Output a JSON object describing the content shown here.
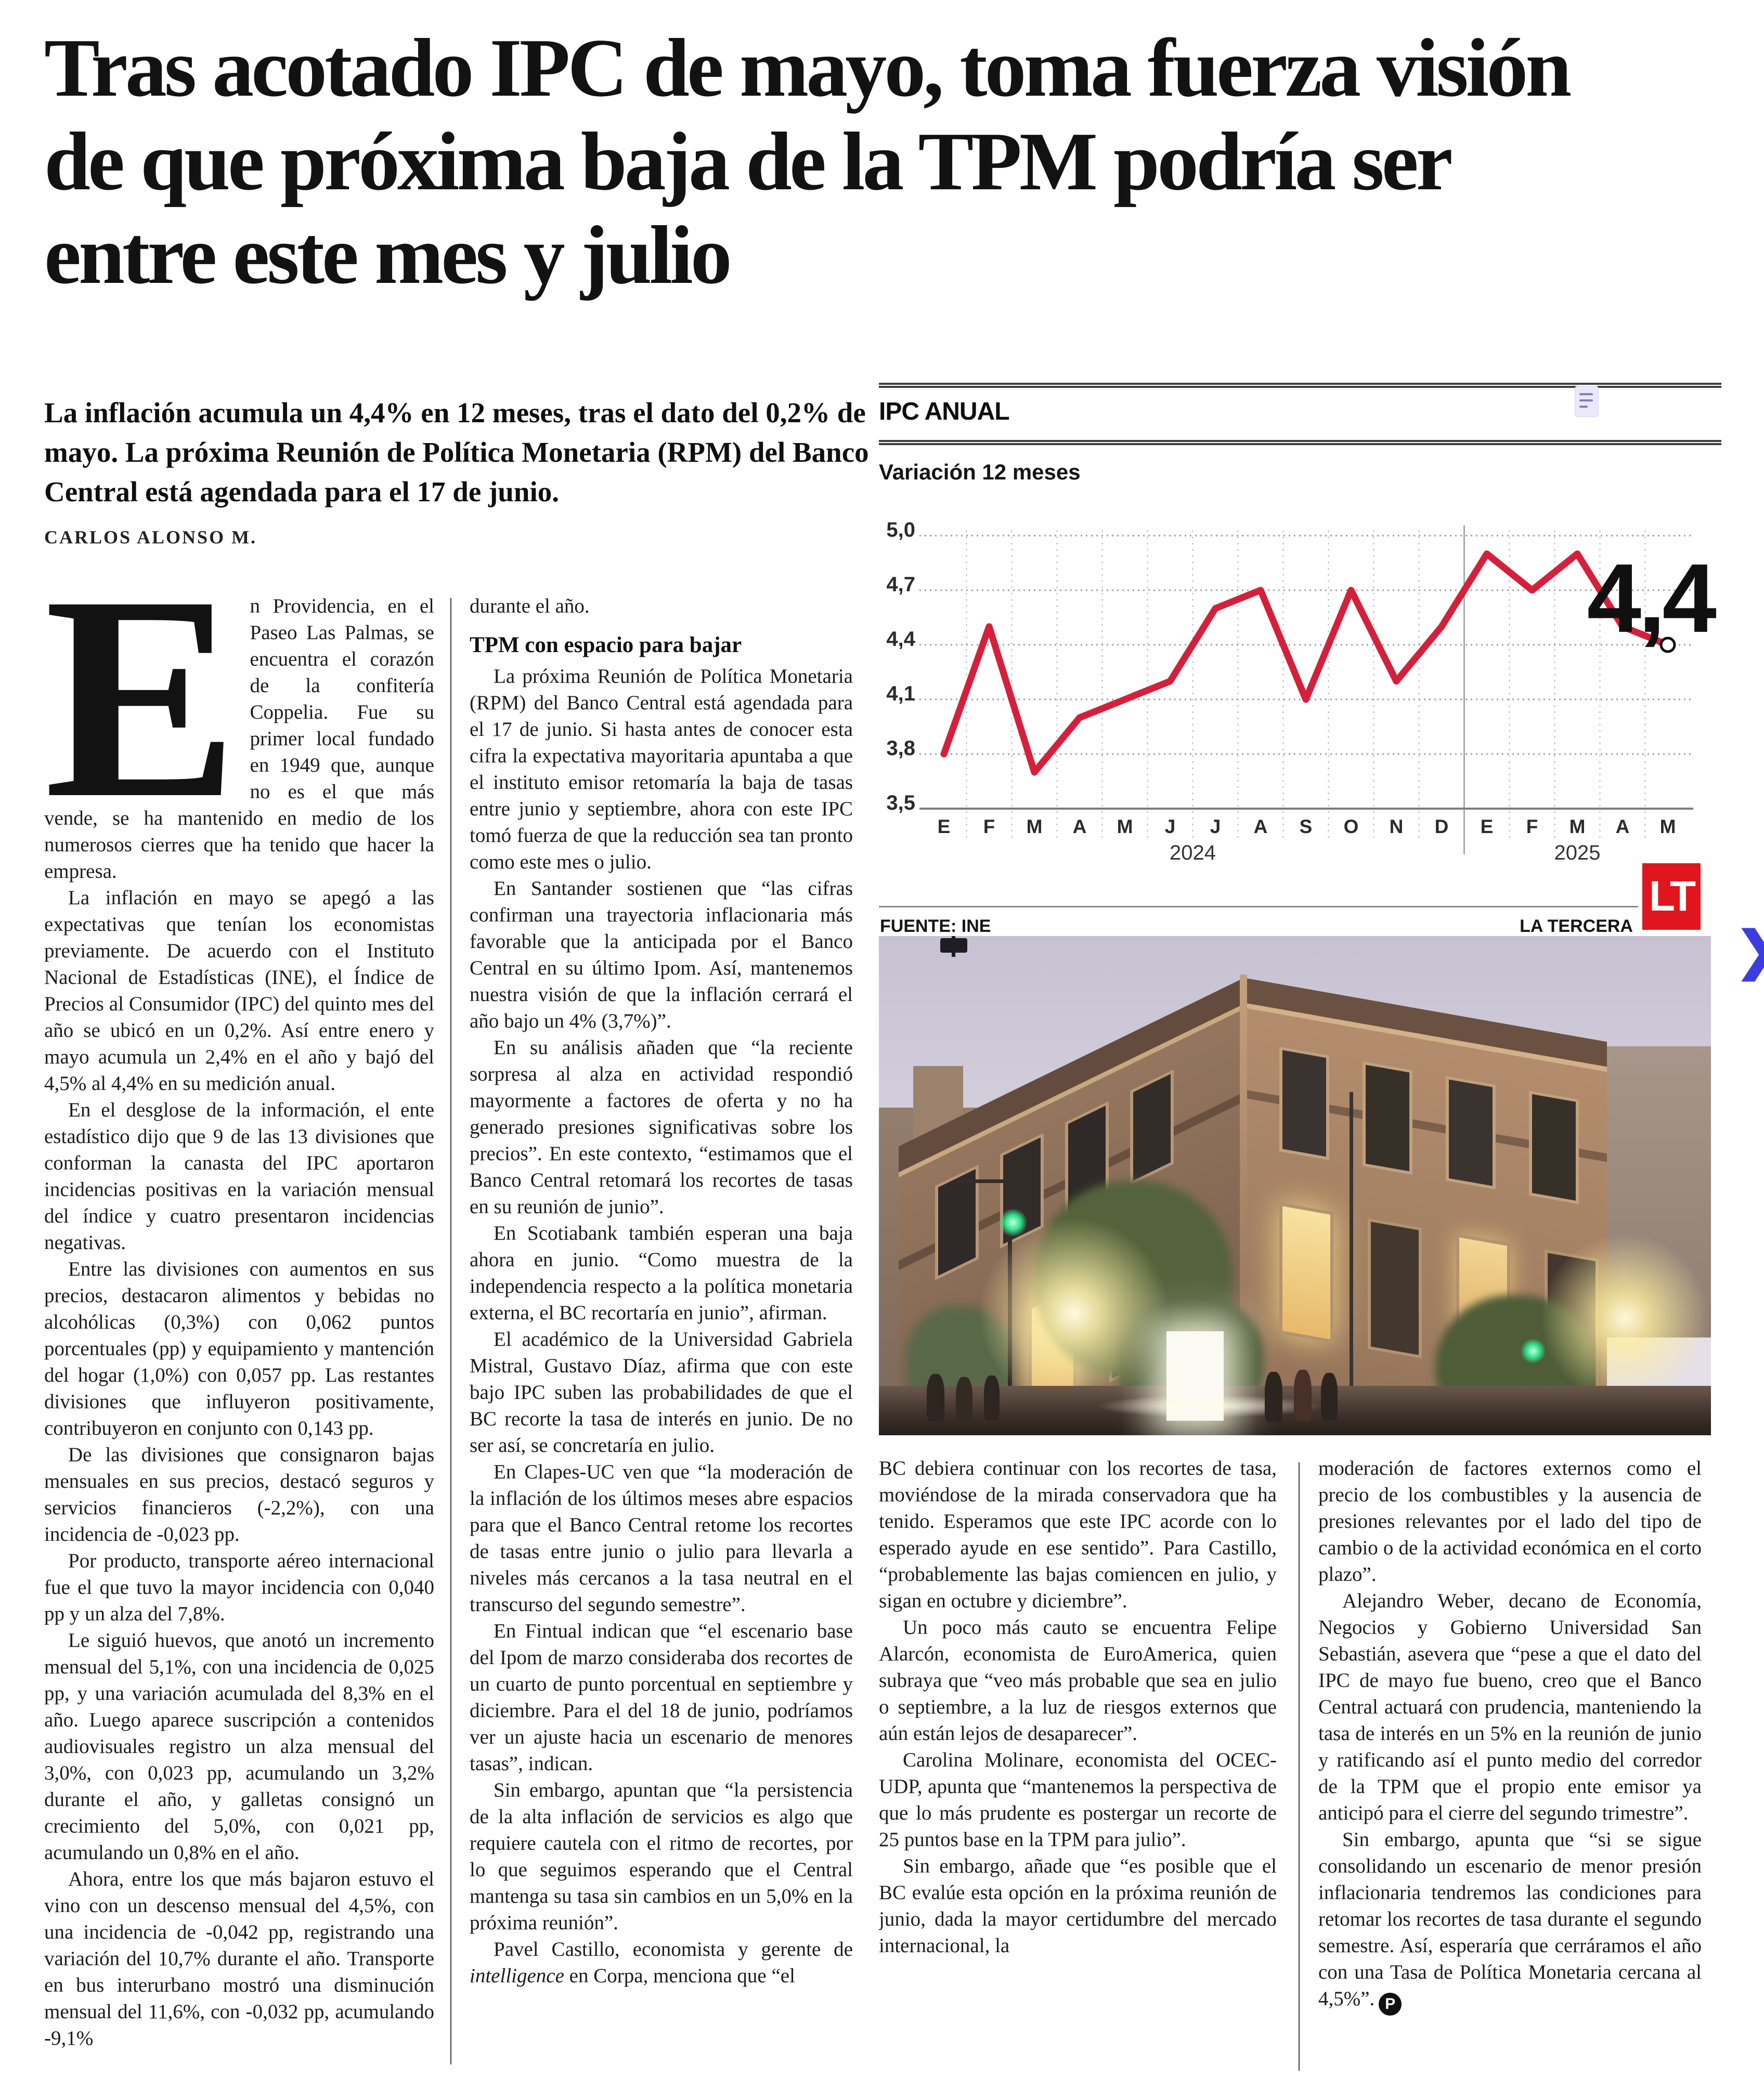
{
  "article": {
    "headline": "Tras acotado IPC de mayo, toma fuerza visión de que próxima baja de la TPM podría ser entre este mes y julio",
    "lede": "La inflación acumula un 4,4% en 12 meses, tras el dato del 0,2% de mayo. La próxima Reunión de Política Monetaria (RPM) del Banco Central está agendada para el 17 de junio.",
    "byline": "CARLOS ALONSO M.",
    "drop_cap": "E",
    "col1_paras": [
      "n Providencia, en el Paseo Las Palmas, se encuentra el corazón de la confitería Coppelia. Fue su primer local fundado en 1949 que, aunque no es el que más vende, se ha mantenido en medio de los numerosos cierres que ha tenido que hacer la empresa.",
      "La inflación en mayo se apegó a las expectativas que tenían los economistas previamente. De acuerdo con el Instituto Nacional de Estadísticas (INE), el Índice de Precios al Consumidor (IPC) del quinto mes del año se ubicó en un 0,2%. Así entre enero y mayo acumula un 2,4% en el año y bajó del 4,5% al 4,4% en su medición anual.",
      "En el desglose de la información, el ente estadístico dijo que 9 de las 13 divisiones que conforman la canasta del IPC aportaron incidencias positivas en la variación mensual del índice y cuatro presentaron incidencias negativas.",
      "Entre las divisiones con aumentos en sus precios, destacaron alimentos y bebidas no alcohólicas (0,3%) con 0,062 puntos porcentuales (pp) y equipamiento y mantención del hogar (1,0%) con 0,057 pp. Las restantes divisiones que influyeron positivamente, contribuyeron en conjunto con 0,143 pp.",
      "De las divisiones que consignaron bajas mensuales en sus precios, destacó seguros y servicios financieros (-2,2%), con una incidencia de -0,023 pp.",
      "Por producto, transporte aéreo internacional fue el que tuvo la mayor incidencia con 0,040 pp y un alza del 7,8%.",
      "Le siguió huevos, que anotó un incremento mensual del 5,1%, con una incidencia de 0,025 pp, y una variación acumulada del 8,3% en el año. Luego aparece suscripción a contenidos audiovisuales registro un alza mensual del 3,0%, con 0,023 pp, acumulando un 3,2% durante el año, y galletas consignó un crecimiento del 5,0%, con 0,021 pp, acumulando un 0,8% en el año.",
      "Ahora, entre los que más bajaron estuvo el vino con un descenso mensual del 4,5%, con una incidencia de -0,042 pp, registrando una variación del 10,7% durante el año. Transporte en bus interurbano mostró una disminución mensual del 11,6%, con -0,032 pp, acumulando -9,1%"
    ],
    "col2_continuation": "durante el año.",
    "subhead": "TPM con espacio para bajar",
    "col2_paras": [
      "La próxima Reunión de Política Monetaria (RPM) del Banco Central está agendada para el 17 de junio. Si hasta antes de conocer esta cifra la expectativa mayoritaria apuntaba a que el instituto emisor retomaría la baja de tasas entre junio y septiembre, ahora con este IPC tomó fuerza de que la reducción sea tan pronto como este mes o julio.",
      "En Santander sostienen que “las cifras confirman una trayectoria inflacionaria más favorable que la anticipada por el Banco Central en su último Ipom. Así, mantenemos nuestra visión de que la inflación cerrará el año bajo un 4% (3,7%)”.",
      "En su análisis añaden que “la reciente sorpresa al alza en actividad respondió mayormente a factores de oferta y no ha generado presiones significativas sobre los precios”. En este contexto, “estimamos que el Banco Central retomará los recortes de tasas en su reunión de junio”.",
      "En Scotiabank también esperan una baja ahora en junio. “Como muestra de la independencia respecto a la política monetaria externa, el BC recortaría en junio”, afirman.",
      "El académico de la Universidad Gabriela Mistral, Gustavo Díaz, afirma que con este bajo IPC suben las probabilidades de que el BC recorte la tasa de interés en junio. De no ser así, se concretaría en julio.",
      "En Clapes-UC ven que “la moderación de la inflación de los últimos meses abre espacios para que el Banco Central retome los recortes de tasas entre junio o julio para llevarla a niveles más cercanos a la tasa neutral en el transcurso del segundo semestre”.",
      "En Fintual indican que “el escenario base del Ipom de marzo consideraba dos recortes de un cuarto de punto porcentual en septiembre y diciembre. Para el del 18 de junio, podríamos ver un ajuste hacia un escenario de menores tasas”, indican.",
      "Sin embargo, apuntan que “la persistencia de la alta inflación de servicios es algo que requiere cautela con el ritmo de recortes, por lo que seguimos esperando que el Central mantenga su tasa sin cambios en un 5,0% en la próxima reunión”."
    ],
    "col2_last": {
      "before": "Pavel Castillo, economista y gerente de ",
      "italic": "intelligence",
      "after": " en Corpa, menciona que “el"
    },
    "col3_paras": [
      "BC debiera continuar con los recortes de tasa, moviéndose de la mirada conservadora que ha tenido. Esperamos que este IPC acorde con lo esperado ayude en ese sentido”. Para Castillo, “probablemente las bajas comiencen en julio, y sigan en octubre y diciembre”.",
      "Un poco más cauto se encuentra Felipe Alarcón, economista de EuroAmerica, quien subraya que “veo más probable que sea en julio o septiembre, a la luz de riesgos externos que aún están lejos de desaparecer”.",
      "Carolina Molinare, economista del OCEC-UDP, apunta que “mantenemos la perspectiva de que lo más prudente es postergar un recorte de 25 puntos base en la TPM para julio”.",
      "Sin embargo, añade que “es posible que el BC evalúe esta opción en la próxima reunión de junio, dada la mayor certidumbre del mercado internacional, la"
    ],
    "col4_paras": [
      "moderación de factores externos como el precio de los combustibles y la ausencia de presiones relevantes por el lado del tipo de cambio o de la actividad económica en el corto plazo”.",
      "Alejandro Weber, decano de Economía, Negocios y Gobierno Universidad San Sebastián, asevera que “pese a que el dato del IPC de mayo fue bueno, creo que el Banco Central actuará con prudencia, manteniendo la tasa de interés en un 5% en la reunión de junio y ratificando así el punto medio del corredor de la TPM que el propio ente emisor ya anticipó para el cierre del segundo trimestre”."
    ],
    "col4_last": "Sin embargo, apunta que “si se sigue consolidando un escenario de menor presión inflacionaria tendremos las condiciones para retomar los recortes de tasa durante el segundo semestre. Así, esperaría que cerráramos el año con una Tasa de Política Monetaria cercana al 4,5%”.",
    "end_mark": "P"
  },
  "chart": {
    "kicker": "IPC ANUAL",
    "subtitle": "Variación 12 meses",
    "source": "FUENTE: INE",
    "credit": "LA TERCERA",
    "logo": "LT",
    "chart_data": {
      "type": "line",
      "title": "IPC ANUAL",
      "subtitle": "Variación 12 meses",
      "unit": "%",
      "x": [
        "E",
        "F",
        "M",
        "A",
        "M",
        "J",
        "J",
        "A",
        "S",
        "O",
        "N",
        "D",
        "E",
        "F",
        "M",
        "A",
        "M"
      ],
      "years": [
        {
          "label": "2024",
          "from": 0,
          "to": 11
        },
        {
          "label": "2025",
          "from": 12,
          "to": 16
        }
      ],
      "values": [
        3.8,
        4.5,
        3.7,
        4.0,
        4.1,
        4.2,
        4.6,
        4.7,
        4.1,
        4.7,
        4.2,
        4.5,
        4.9,
        4.7,
        4.9,
        4.5,
        4.4
      ],
      "ylim": [
        3.5,
        5.0
      ],
      "yticks": [
        {
          "label": "5,0",
          "value": 5.0
        },
        {
          "label": "4,7",
          "value": 4.7
        },
        {
          "label": "4,4",
          "value": 4.4
        },
        {
          "label": "4,1",
          "value": 4.1
        },
        {
          "label": "3,8",
          "value": 3.8
        },
        {
          "label": "3,5",
          "value": 3.5
        }
      ],
      "last_point_label": "4,4",
      "line_color": "#d5203c",
      "grid": "dotted horizontal gridlines, dashed monthly verticals, solid year separator",
      "legend": "none",
      "source": "FUENTE: INE",
      "credit": "LA TERCERA"
    },
    "colors": {
      "line": "#d5203c",
      "logo_bg": "#e1151d",
      "note_icon_bg": "#eae8fa"
    }
  },
  "nav": {
    "next_glyph": "❯",
    "chevron_color": "#3d3ddf"
  }
}
